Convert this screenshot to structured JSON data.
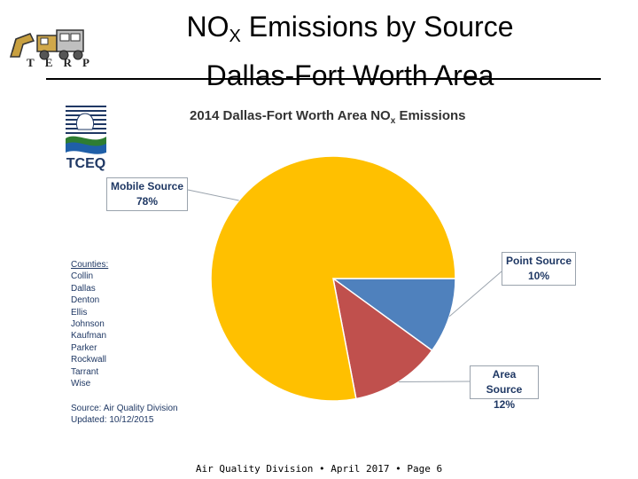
{
  "slide": {
    "title_prefix": "NO",
    "title_subscript": "X",
    "title_rest": " Emissions by Source",
    "title_line2": "Dallas-Fort Worth Area",
    "footer": "Air Quality Division • April 2017 • Page 6"
  },
  "terp_logo": {
    "letters": [
      "T",
      "E",
      "R",
      "P"
    ]
  },
  "tceq_logo": {
    "text": "TCEQ"
  },
  "counties": {
    "header": "Counties:",
    "items": [
      "Collin",
      "Dallas",
      "Denton",
      "Ellis",
      "Johnson",
      "Kaufman",
      "Parker",
      "Rockwall",
      "Tarrant",
      "Wise"
    ]
  },
  "source_note": {
    "line1": "Source: Air Quality Division",
    "line2": "Updated: 10/12/2015"
  },
  "colors": {
    "mobile": "#FFC000",
    "point": "#4F81BD",
    "area": "#C0504D"
  },
  "chart_data": {
    "type": "pie",
    "title_prefix": "2014 Dallas-Fort Worth Area NO",
    "title_subscript": "x",
    "title_suffix": " Emissions",
    "slices": [
      {
        "name": "Point Source",
        "label": "10%",
        "value": 10,
        "color": "#4F81BD"
      },
      {
        "name": "Area Source",
        "label": "12%",
        "value": 12,
        "color": "#C0504D"
      },
      {
        "name": "Mobile Source",
        "label": "78%",
        "value": 78,
        "color": "#FFC000"
      }
    ]
  }
}
